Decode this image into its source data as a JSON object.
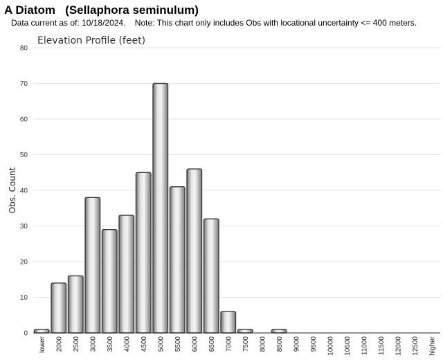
{
  "header": {
    "title": "A Diatom   (Sellaphora seminulum)",
    "subtitle": "Data current as of: 10/18/2024.    Note: This chart only includes Obs with locational uncertainty <= 400 meters."
  },
  "chart_data": {
    "type": "bar",
    "title": "Elevation Profile (feet)",
    "xlabel": "",
    "ylabel": "Obs. Count",
    "ylim": [
      0,
      80
    ],
    "yticks": [
      0,
      10,
      20,
      30,
      40,
      50,
      60,
      70,
      80
    ],
    "grid": true,
    "categories": [
      "lower",
      "2000",
      "2500",
      "3000",
      "3500",
      "4000",
      "4500",
      "5000",
      "5500",
      "6000",
      "6500",
      "7000",
      "7500",
      "8000",
      "8500",
      "9000",
      "9500",
      "10000",
      "10500",
      "11000",
      "11500",
      "12000",
      "12500",
      "higher"
    ],
    "values": [
      1,
      14,
      16,
      38,
      29,
      33,
      45,
      70,
      41,
      46,
      32,
      6,
      1,
      0,
      1,
      0,
      0,
      0,
      0,
      0,
      0,
      0,
      0,
      0
    ],
    "bar_color": "#a8a8a8"
  }
}
